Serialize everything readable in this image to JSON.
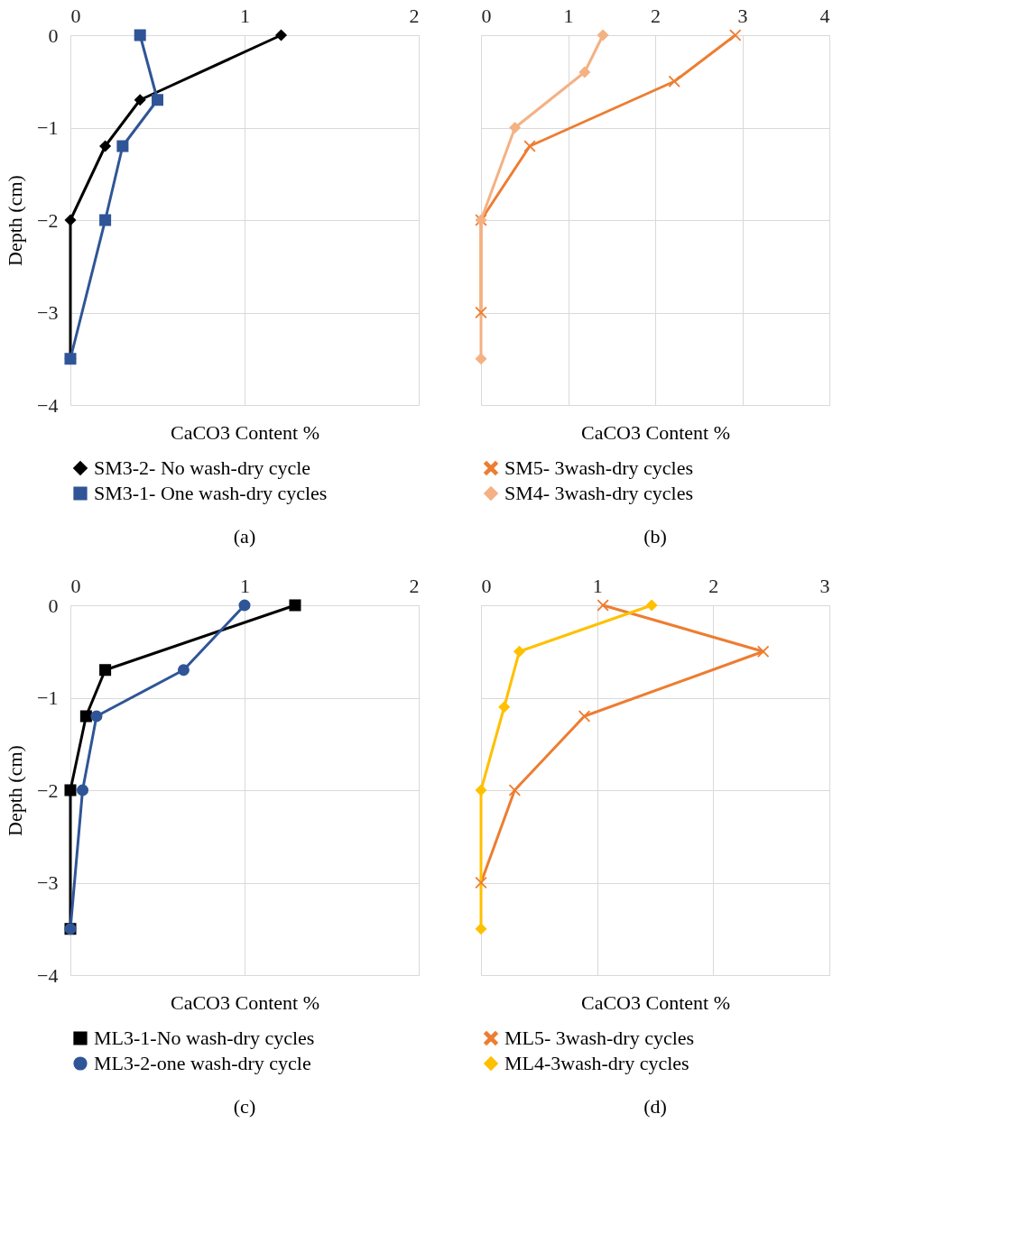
{
  "chart_data": [
    {
      "type": "line",
      "xlabel": "CaCO3 Content %",
      "ylabel": "Depth (cm)",
      "annotations": [
        "(a)"
      ],
      "xlim": [
        0,
        2
      ],
      "xticks": [
        0,
        1,
        2
      ],
      "ylim": [
        -4,
        0
      ],
      "yticks": [
        -4,
        -3,
        -2,
        -1,
        0
      ],
      "grid": true,
      "legend": "bottom",
      "series": [
        {
          "name": "SM3-2- No wash-dry cycle",
          "color": "#000000",
          "marker": "diamond",
          "x": [
            1.21,
            0.4,
            0.2,
            0,
            0
          ],
          "values": [
            0,
            -0.7,
            -1.2,
            -2,
            -3.5
          ]
        },
        {
          "name": "SM3-1- One wash-dry cycles",
          "color": "#2f5597",
          "marker": "square",
          "x": [
            0.4,
            0.5,
            0.3,
            0.2,
            0
          ],
          "values": [
            0,
            -0.7,
            -1.2,
            -2,
            -3.5
          ]
        }
      ]
    },
    {
      "type": "line",
      "xlabel": "CaCO3 Content %",
      "annotations": [
        "(b)"
      ],
      "xlim": [
        0,
        4
      ],
      "xticks": [
        0,
        1,
        2,
        3,
        4
      ],
      "ylim": [
        -4,
        0
      ],
      "yticks": [
        -4,
        -3,
        -2,
        -1,
        0
      ],
      "grid": true,
      "legend": "bottom",
      "tick_labels": "x",
      "series": [
        {
          "name": "SM5- 3wash-dry cycles",
          "color": "#ed7d31",
          "marker": "cross",
          "x": [
            2.92,
            2.22,
            0.56,
            0,
            0
          ],
          "values": [
            0,
            -0.5,
            -1.2,
            -2,
            -3
          ]
        },
        {
          "name": "SM4- 3wash-dry cycles",
          "color": "#f4b183",
          "marker": "diamond",
          "x": [
            1.4,
            1.19,
            0.39,
            0,
            0
          ],
          "values": [
            0,
            -0.4,
            -1,
            -2,
            -3.5
          ]
        }
      ]
    },
    {
      "type": "line",
      "xlabel": "CaCO3 Content %",
      "ylabel": "Depth (cm)",
      "annotations": [
        "(c)"
      ],
      "xlim": [
        0,
        2
      ],
      "xticks": [
        0,
        1,
        2
      ],
      "ylim": [
        -4,
        0
      ],
      "yticks": [
        -4,
        -3,
        -2,
        -1,
        0
      ],
      "grid": true,
      "legend": "bottom",
      "series": [
        {
          "name": "ML3-1-No wash-dry cycles",
          "color": "#000000",
          "marker": "square",
          "x": [
            1.29,
            0.2,
            0.09,
            0,
            0
          ],
          "values": [
            0,
            -0.7,
            -1.2,
            -2,
            -3.5
          ]
        },
        {
          "name": "ML3-2-one wash-dry cycle",
          "color": "#2f5597",
          "marker": "circle",
          "x": [
            1.0,
            0.65,
            0.15,
            0.07,
            0
          ],
          "values": [
            0,
            -0.7,
            -1.2,
            -2,
            -3.5
          ]
        }
      ]
    },
    {
      "type": "line",
      "xlabel": "CaCO3 Content %",
      "annotations": [
        "(d)"
      ],
      "xlim": [
        0,
        3
      ],
      "xticks": [
        0,
        1,
        2,
        3
      ],
      "ylim": [
        -4,
        0
      ],
      "yticks": [
        -4,
        -3,
        -2,
        -1,
        0
      ],
      "grid": true,
      "legend": "bottom",
      "tick_labels": "x",
      "series": [
        {
          "name": "ML5- 3wash-dry cycles",
          "color": "#ed7d31",
          "marker": "cross",
          "x": [
            1.05,
            2.43,
            0.89,
            0.29,
            0
          ],
          "values": [
            0,
            -0.5,
            -1.2,
            -2,
            -3
          ]
        },
        {
          "name": "ML4-3wash-dry cycles",
          "color": "#ffc000",
          "marker": "diamond",
          "x": [
            1.47,
            0.33,
            0.2,
            0,
            0
          ],
          "values": [
            0,
            -0.5,
            -1.1,
            -2,
            -3.5
          ]
        }
      ]
    }
  ]
}
